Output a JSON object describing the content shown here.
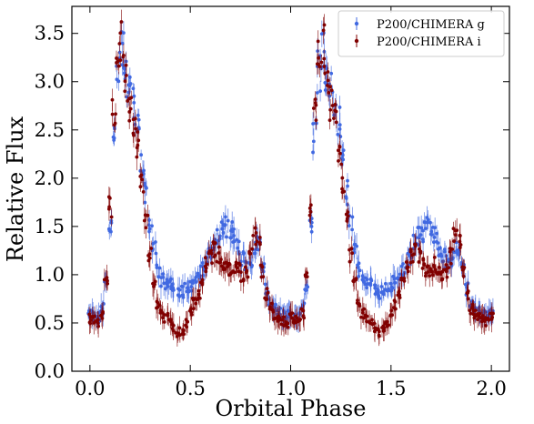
{
  "chart_data": {
    "type": "scatter",
    "title": "",
    "xlabel": "Orbital Phase",
    "ylabel": "Relative Flux",
    "xlim": [
      -0.09,
      2.09
    ],
    "ylim": [
      0.0,
      3.78
    ],
    "xticks": [
      0.0,
      0.5,
      1.0,
      1.5,
      2.0
    ],
    "yticks": [
      0.0,
      0.5,
      1.0,
      1.5,
      2.0,
      2.5,
      3.0,
      3.5
    ],
    "xtick_labels": [
      "0.0",
      "0.5",
      "1.0",
      "1.5",
      "2.0"
    ],
    "ytick_labels": [
      "0.0",
      "0.5",
      "1.0",
      "1.5",
      "2.0",
      "2.5",
      "3.0",
      "3.5"
    ],
    "grid": false,
    "legend_position": "top-right",
    "error_bars": true,
    "series": [
      {
        "name": "P200/CHIMERA g",
        "color": "#4169e1",
        "x": [
          0.0,
          0.02,
          0.04,
          0.06,
          0.08,
          0.1,
          0.12,
          0.14,
          0.16,
          0.18,
          0.2,
          0.22,
          0.24,
          0.26,
          0.28,
          0.3,
          0.32,
          0.34,
          0.36,
          0.38,
          0.4,
          0.42,
          0.44,
          0.46,
          0.48,
          0.5,
          0.52,
          0.54,
          0.56,
          0.58,
          0.6,
          0.62,
          0.64,
          0.66,
          0.68,
          0.7,
          0.72,
          0.74,
          0.76,
          0.78,
          0.8,
          0.82,
          0.84,
          0.86,
          0.88,
          0.9,
          0.92,
          0.94,
          0.96,
          0.98,
          1.0,
          1.02,
          1.04,
          1.06,
          1.08,
          1.1,
          1.12,
          1.14,
          1.16,
          1.18,
          1.2,
          1.22,
          1.24,
          1.26,
          1.28,
          1.3,
          1.32,
          1.34,
          1.36,
          1.38,
          1.4,
          1.42,
          1.44,
          1.46,
          1.48,
          1.5,
          1.52,
          1.54,
          1.56,
          1.58,
          1.6,
          1.62,
          1.64,
          1.66,
          1.68,
          1.7,
          1.72,
          1.74,
          1.76,
          1.78,
          1.8,
          1.82,
          1.84,
          1.86,
          1.88,
          1.9,
          1.92,
          1.94,
          1.96,
          1.98,
          2.0
        ],
        "y": [
          0.6,
          0.58,
          0.56,
          0.65,
          0.9,
          1.5,
          2.4,
          3.1,
          3.3,
          3.05,
          2.9,
          2.75,
          2.55,
          2.2,
          1.85,
          1.55,
          1.25,
          1.05,
          0.95,
          0.9,
          0.9,
          0.85,
          0.8,
          0.82,
          0.85,
          0.88,
          0.92,
          0.98,
          1.05,
          1.15,
          1.25,
          1.35,
          1.4,
          1.45,
          1.5,
          1.48,
          1.4,
          1.28,
          1.18,
          1.12,
          1.15,
          1.25,
          1.3,
          1.1,
          0.85,
          0.7,
          0.65,
          0.62,
          0.6,
          0.58,
          0.6,
          0.58,
          0.56,
          0.65,
          0.9,
          1.5,
          2.4,
          3.1,
          3.3,
          3.05,
          2.9,
          2.75,
          2.55,
          2.2,
          1.85,
          1.55,
          1.25,
          1.05,
          0.95,
          0.9,
          0.9,
          0.85,
          0.8,
          0.82,
          0.85,
          0.88,
          0.92,
          0.98,
          1.05,
          1.15,
          1.25,
          1.35,
          1.4,
          1.45,
          1.5,
          1.48,
          1.4,
          1.28,
          1.18,
          1.12,
          1.15,
          1.25,
          1.3,
          1.1,
          0.85,
          0.7,
          0.65,
          0.62,
          0.6,
          0.58,
          0.6
        ]
      },
      {
        "name": "P200/CHIMERA i",
        "color": "#800000",
        "x": [
          0.0,
          0.02,
          0.04,
          0.06,
          0.08,
          0.1,
          0.12,
          0.14,
          0.16,
          0.18,
          0.2,
          0.22,
          0.24,
          0.26,
          0.28,
          0.3,
          0.32,
          0.34,
          0.36,
          0.38,
          0.4,
          0.42,
          0.44,
          0.46,
          0.48,
          0.5,
          0.52,
          0.54,
          0.56,
          0.58,
          0.6,
          0.62,
          0.64,
          0.66,
          0.68,
          0.7,
          0.72,
          0.74,
          0.76,
          0.78,
          0.8,
          0.82,
          0.84,
          0.86,
          0.88,
          0.9,
          0.92,
          0.94,
          0.96,
          0.98,
          1.0,
          1.02,
          1.04,
          1.06,
          1.08,
          1.1,
          1.12,
          1.14,
          1.16,
          1.18,
          1.2,
          1.22,
          1.24,
          1.26,
          1.28,
          1.3,
          1.32,
          1.34,
          1.36,
          1.38,
          1.4,
          1.42,
          1.44,
          1.46,
          1.48,
          1.5,
          1.52,
          1.54,
          1.56,
          1.58,
          1.6,
          1.62,
          1.64,
          1.66,
          1.68,
          1.7,
          1.72,
          1.74,
          1.76,
          1.78,
          1.8,
          1.82,
          1.84,
          1.86,
          1.88,
          1.9,
          1.92,
          1.94,
          1.96,
          1.98,
          2.0
        ],
        "y": [
          0.55,
          0.52,
          0.5,
          0.6,
          0.95,
          1.7,
          2.7,
          3.3,
          3.4,
          3.0,
          2.8,
          2.6,
          2.35,
          2.0,
          1.6,
          1.2,
          0.9,
          0.7,
          0.6,
          0.55,
          0.5,
          0.45,
          0.4,
          0.42,
          0.5,
          0.6,
          0.7,
          0.8,
          0.95,
          1.1,
          1.2,
          1.25,
          1.2,
          1.1,
          1.05,
          1.05,
          1.1,
          1.05,
          1.0,
          1.05,
          1.2,
          1.4,
          1.35,
          1.05,
          0.8,
          0.65,
          0.58,
          0.55,
          0.52,
          0.5,
          0.55,
          0.52,
          0.5,
          0.6,
          0.95,
          1.7,
          2.7,
          3.3,
          3.4,
          3.0,
          2.8,
          2.6,
          2.35,
          2.0,
          1.6,
          1.2,
          0.9,
          0.7,
          0.6,
          0.55,
          0.5,
          0.45,
          0.4,
          0.42,
          0.5,
          0.6,
          0.7,
          0.8,
          0.95,
          1.1,
          1.2,
          1.25,
          1.2,
          1.1,
          1.05,
          1.05,
          1.1,
          1.05,
          1.0,
          1.05,
          1.2,
          1.4,
          1.35,
          1.05,
          0.8,
          0.65,
          0.58,
          0.55,
          0.52,
          0.5,
          0.55
        ]
      }
    ]
  }
}
